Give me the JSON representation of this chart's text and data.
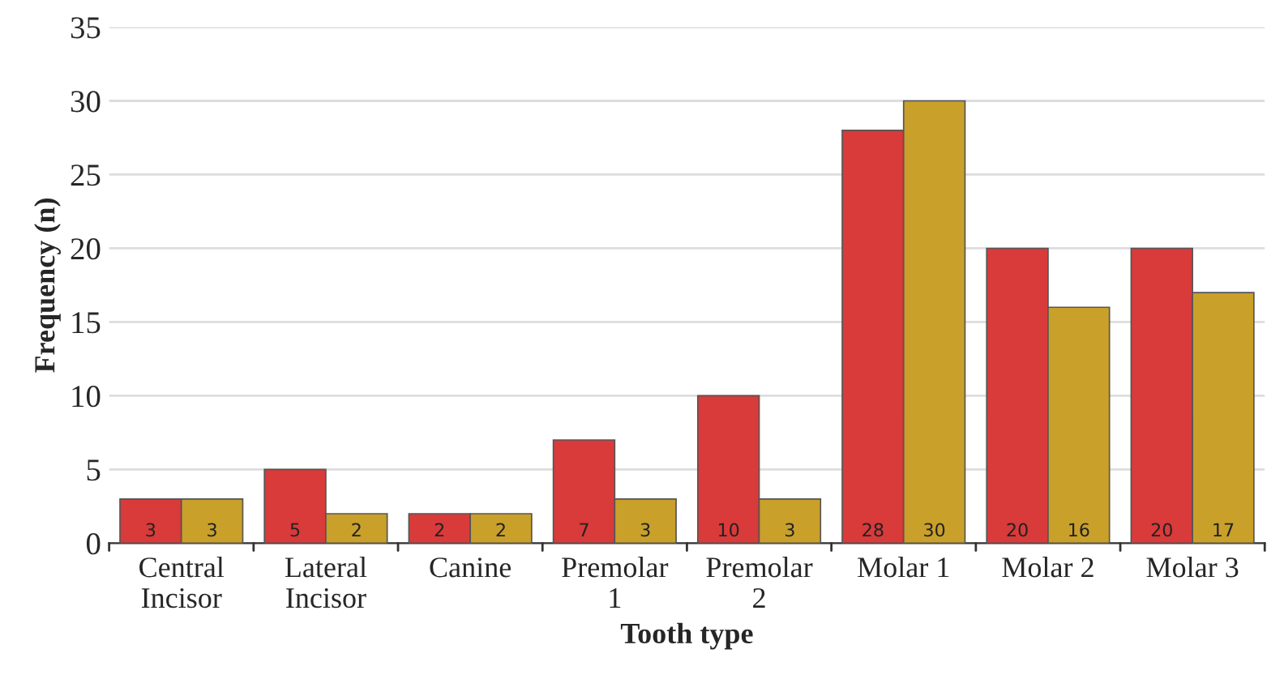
{
  "chart_data": {
    "type": "bar",
    "xlabel": "Tooth type",
    "ylabel": "Frequency (n)",
    "categories": [
      "Central\nIncisor",
      "Lateral\nIncisor",
      "Canine",
      "Premolar\n1",
      "Premolar\n2",
      "Molar 1",
      "Molar 2",
      "Molar 3"
    ],
    "series": [
      {
        "color": "#d93a3a",
        "values": [
          3,
          5,
          2,
          7,
          10,
          28,
          20,
          20
        ]
      },
      {
        "color": "#c9a02a",
        "values": [
          3,
          2,
          2,
          3,
          3,
          30,
          16,
          17
        ]
      }
    ],
    "ylim": [
      0,
      35
    ],
    "yticks": [
      0,
      5,
      10,
      15,
      20,
      25,
      30,
      35
    ],
    "grid": "y",
    "data_labels": true
  }
}
